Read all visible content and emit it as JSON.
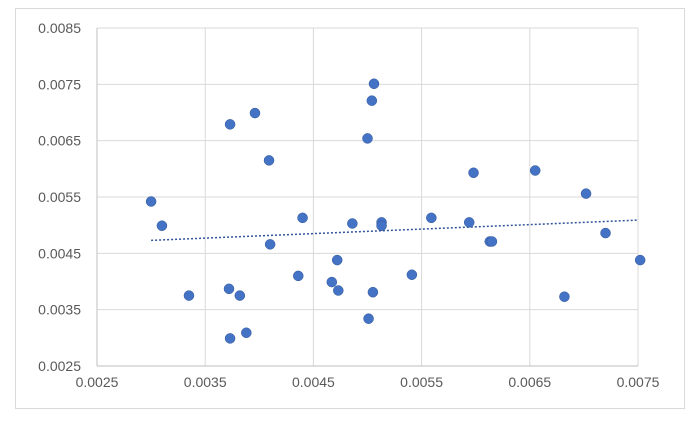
{
  "chart_data": {
    "type": "scatter",
    "title": "",
    "xlabel": "",
    "ylabel": "",
    "xlim": [
      0.0025,
      0.0075
    ],
    "ylim": [
      0.0025,
      0.0085
    ],
    "x_tick_labels": [
      "0.0025",
      "0.0035",
      "0.0045",
      "0.0055",
      "0.0065",
      "0.0075"
    ],
    "y_tick_labels": [
      "0.0025",
      "0.0035",
      "0.0045",
      "0.0055",
      "0.0065",
      "0.0075",
      "0.0085"
    ],
    "grid": "vertical and horizontal major gridlines",
    "legend": "none",
    "point_color": "#4472c4",
    "trendline": {
      "type": "linear",
      "style": "dotted",
      "color": "#2f5597",
      "x": [
        0.003,
        0.0075
      ],
      "y": [
        0.00473,
        0.00509
      ]
    },
    "series": [
      {
        "points": [
          [
            0.003,
            0.00542
          ],
          [
            0.0031,
            0.00499
          ],
          [
            0.00335,
            0.00375
          ],
          [
            0.00372,
            0.00387
          ],
          [
            0.00373,
            0.00679
          ],
          [
            0.00373,
            0.00299
          ],
          [
            0.00382,
            0.00375
          ],
          [
            0.00388,
            0.00309
          ],
          [
            0.00396,
            0.00699
          ],
          [
            0.00409,
            0.00615
          ],
          [
            0.0041,
            0.00466
          ],
          [
            0.00436,
            0.0041
          ],
          [
            0.0044,
            0.00513
          ],
          [
            0.00467,
            0.00399
          ],
          [
            0.00472,
            0.00438
          ],
          [
            0.00473,
            0.00384
          ],
          [
            0.00486,
            0.00503
          ],
          [
            0.005,
            0.00654
          ],
          [
            0.00501,
            0.00334
          ],
          [
            0.00504,
            0.00721
          ],
          [
            0.00505,
            0.00381
          ],
          [
            0.00506,
            0.00751
          ],
          [
            0.00513,
            0.00505
          ],
          [
            0.00513,
            0.00499
          ],
          [
            0.00541,
            0.00412
          ],
          [
            0.00559,
            0.00513
          ],
          [
            0.00594,
            0.00505
          ],
          [
            0.00598,
            0.00593
          ],
          [
            0.00613,
            0.00471
          ],
          [
            0.00615,
            0.00471
          ],
          [
            0.00655,
            0.00597
          ],
          [
            0.00682,
            0.00373
          ],
          [
            0.00702,
            0.00556
          ],
          [
            0.0072,
            0.00486
          ],
          [
            0.00752,
            0.00438
          ]
        ]
      }
    ]
  }
}
